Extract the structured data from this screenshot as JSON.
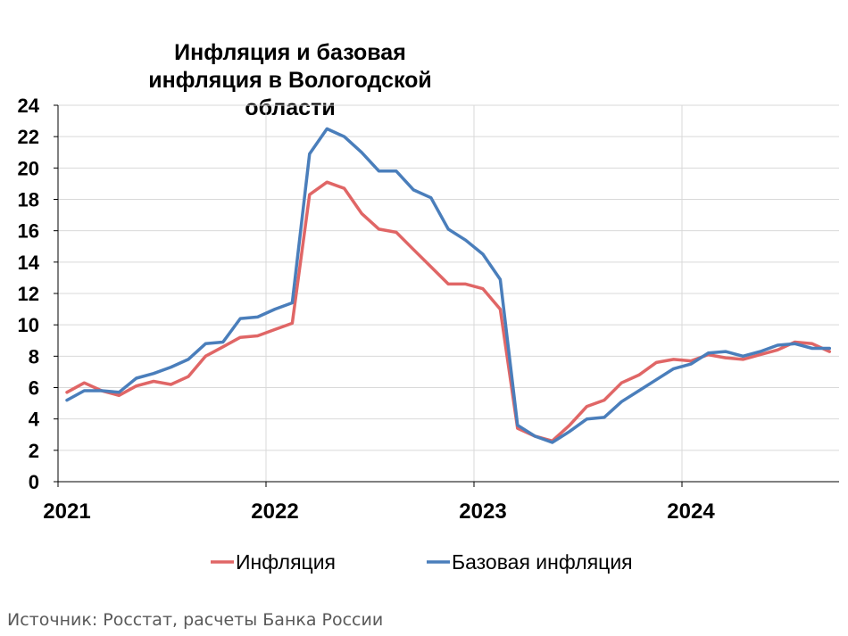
{
  "chart_data": {
    "type": "line",
    "title": "Инфляция и базовая инфляция в Вологодской области",
    "x_start": "2021-01",
    "x_step": "month",
    "x_tick_labels": [
      "2021",
      "2022",
      "2023",
      "2024"
    ],
    "y_tick_labels": [
      "0",
      "2",
      "4",
      "6",
      "8",
      "10",
      "12",
      "14",
      "16",
      "18",
      "20",
      "22",
      "24"
    ],
    "ylim": [
      0,
      24
    ],
    "grid": true,
    "legend_position": "bottom",
    "series": [
      {
        "name": "Инфляция",
        "color": "#e06666",
        "values": [
          5.7,
          6.3,
          5.8,
          5.5,
          6.1,
          6.4,
          6.2,
          6.7,
          8.0,
          8.6,
          9.2,
          9.3,
          9.7,
          10.1,
          18.3,
          19.1,
          18.7,
          17.1,
          16.1,
          15.9,
          14.8,
          13.7,
          12.6,
          12.6,
          12.3,
          11.0,
          3.4,
          2.9,
          2.6,
          3.6,
          4.8,
          5.2,
          6.3,
          6.8,
          7.6,
          7.8,
          7.7,
          8.1,
          7.9,
          7.8,
          8.1,
          8.4,
          8.9,
          8.8,
          8.3
        ]
      },
      {
        "name": "Базовая инфляция",
        "color": "#4a7ebb",
        "values": [
          5.2,
          5.8,
          5.8,
          5.7,
          6.6,
          6.9,
          7.3,
          7.8,
          8.8,
          8.9,
          10.4,
          10.5,
          11.0,
          11.4,
          20.9,
          22.5,
          22.0,
          21.0,
          19.8,
          19.8,
          18.6,
          18.1,
          16.1,
          15.4,
          14.5,
          12.9,
          3.6,
          2.9,
          2.5,
          3.2,
          4.0,
          4.1,
          5.1,
          5.8,
          6.5,
          7.2,
          7.5,
          8.2,
          8.3,
          8.0,
          8.3,
          8.7,
          8.8,
          8.5,
          8.5
        ]
      }
    ]
  },
  "source_note": "Источник: Росстат, расчеты Банка России"
}
